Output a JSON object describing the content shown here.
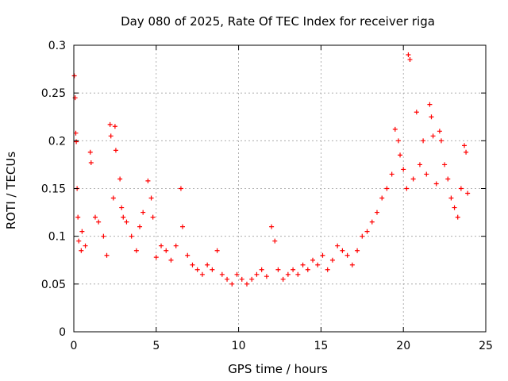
{
  "chart_data": {
    "type": "scatter",
    "title": "Day 080 of 2025, Rate Of TEC Index for receiver riga",
    "xlabel": "GPS time / hours",
    "ylabel": "ROTI / TECUs",
    "xlim": [
      0,
      25
    ],
    "ylim": [
      0,
      0.3
    ],
    "xticks": [
      0,
      5,
      10,
      15,
      20,
      25
    ],
    "xtick_labels": [
      "0",
      "5",
      "10",
      "15",
      "20",
      "25"
    ],
    "yticks": [
      0,
      0.05,
      0.1,
      0.15,
      0.2,
      0.25,
      0.3
    ],
    "ytick_labels": [
      "0",
      "0.05",
      "0.1",
      "0.15",
      "0.2",
      "0.25",
      "0.3"
    ],
    "grid": true,
    "marker": "+",
    "series": [
      {
        "color": "#ff0000",
        "x": [
          0.03,
          0.08,
          0.12,
          0.15,
          0.2,
          0.25,
          0.3,
          0.45,
          0.5,
          0.7,
          1.0,
          1.05,
          1.3,
          1.5,
          1.8,
          2.0,
          2.2,
          2.25,
          2.4,
          2.5,
          2.55,
          2.8,
          2.9,
          3.0,
          3.2,
          3.5,
          3.8,
          4.0,
          4.2,
          4.5,
          4.7,
          4.8,
          5.0,
          5.3,
          5.6,
          5.9,
          6.2,
          6.5,
          6.6,
          6.9,
          7.2,
          7.5,
          7.8,
          8.1,
          8.4,
          8.7,
          9.0,
          9.3,
          9.6,
          9.9,
          10.2,
          10.5,
          10.8,
          11.1,
          11.4,
          11.7,
          12.0,
          12.2,
          12.4,
          12.7,
          13.0,
          13.3,
          13.6,
          13.9,
          14.2,
          14.5,
          14.8,
          15.1,
          15.4,
          15.7,
          16.0,
          16.3,
          16.6,
          16.9,
          17.2,
          17.5,
          17.8,
          18.1,
          18.4,
          18.7,
          19.0,
          19.3,
          19.5,
          19.7,
          19.8,
          20.0,
          20.2,
          20.3,
          20.4,
          20.6,
          20.8,
          21.0,
          21.2,
          21.4,
          21.6,
          21.7,
          21.8,
          22.0,
          22.2,
          22.3,
          22.5,
          22.7,
          22.9,
          23.1,
          23.3,
          23.5,
          23.7,
          23.8,
          23.9
        ],
        "y": [
          0.268,
          0.245,
          0.208,
          0.199,
          0.15,
          0.12,
          0.095,
          0.085,
          0.105,
          0.09,
          0.188,
          0.177,
          0.12,
          0.115,
          0.1,
          0.08,
          0.217,
          0.205,
          0.14,
          0.215,
          0.19,
          0.16,
          0.13,
          0.12,
          0.115,
          0.1,
          0.085,
          0.11,
          0.125,
          0.158,
          0.14,
          0.12,
          0.078,
          0.09,
          0.085,
          0.075,
          0.09,
          0.15,
          0.11,
          0.08,
          0.07,
          0.065,
          0.06,
          0.07,
          0.065,
          0.085,
          0.06,
          0.055,
          0.05,
          0.06,
          0.055,
          0.05,
          0.055,
          0.06,
          0.065,
          0.058,
          0.11,
          0.095,
          0.065,
          0.055,
          0.06,
          0.065,
          0.06,
          0.07,
          0.065,
          0.075,
          0.07,
          0.08,
          0.065,
          0.075,
          0.09,
          0.085,
          0.08,
          0.07,
          0.085,
          0.1,
          0.105,
          0.115,
          0.125,
          0.14,
          0.15,
          0.165,
          0.212,
          0.2,
          0.185,
          0.17,
          0.15,
          0.29,
          0.285,
          0.16,
          0.23,
          0.175,
          0.2,
          0.165,
          0.238,
          0.225,
          0.205,
          0.155,
          0.21,
          0.2,
          0.175,
          0.16,
          0.14,
          0.13,
          0.12,
          0.15,
          0.195,
          0.188,
          0.145
        ]
      }
    ]
  }
}
